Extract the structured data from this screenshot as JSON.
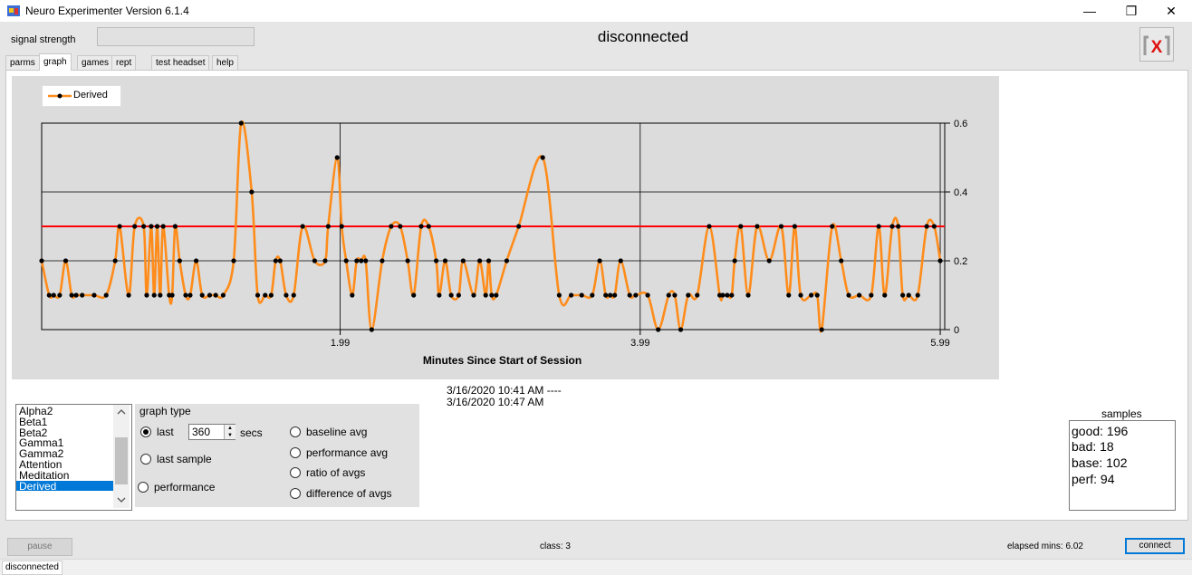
{
  "window": {
    "title": "Neuro Experimenter Version 6.1.4",
    "controls": {
      "minimize": "—",
      "restore": "❐",
      "close": "✕"
    }
  },
  "header": {
    "signal_strength_label": "signal strength",
    "connection_status": "disconnected",
    "logo_text": "X"
  },
  "tabs": [
    {
      "label": "parms",
      "active": false
    },
    {
      "label": "graph",
      "active": true
    },
    {
      "label": "games",
      "active": false
    },
    {
      "label": "rept",
      "active": false
    },
    {
      "label": "test headset",
      "active": false
    },
    {
      "label": "help",
      "active": false
    }
  ],
  "colors": {
    "series": "#ff8c1a",
    "threshold": "#ff0000",
    "selection": "#0078d7",
    "logo_x": "#e01010"
  },
  "chart_data": {
    "type": "line",
    "series": [
      {
        "name": "Derived",
        "x": [
          0.0,
          0.05,
          0.08,
          0.12,
          0.16,
          0.2,
          0.23,
          0.27,
          0.35,
          0.43,
          0.49,
          0.52,
          0.58,
          0.62,
          0.68,
          0.7,
          0.73,
          0.75,
          0.77,
          0.79,
          0.81,
          0.85,
          0.87,
          0.89,
          0.92,
          0.96,
          0.99,
          1.03,
          1.07,
          1.12,
          1.16,
          1.21,
          1.28,
          1.33,
          1.4,
          1.44,
          1.49,
          1.53,
          1.56,
          1.59,
          1.63,
          1.68,
          1.74,
          1.82,
          1.89,
          1.91,
          1.97,
          2.0,
          2.03,
          2.07,
          2.1,
          2.13,
          2.16,
          2.2,
          2.27,
          2.33,
          2.39,
          2.44,
          2.48,
          2.53,
          2.58,
          2.63,
          2.65,
          2.69,
          2.73,
          2.78,
          2.81,
          2.88,
          2.92,
          2.96,
          2.98,
          3.0,
          3.03,
          3.1,
          3.18,
          3.34,
          3.45,
          3.53,
          3.6,
          3.67,
          3.72,
          3.76,
          3.79,
          3.82,
          3.86,
          3.92,
          3.96,
          4.04,
          4.11,
          4.18,
          4.22,
          4.26,
          4.31,
          4.37,
          4.45,
          4.52,
          4.54,
          4.57,
          4.6,
          4.62,
          4.66,
          4.71,
          4.77,
          4.85,
          4.93,
          4.98,
          5.02,
          5.06,
          5.13,
          5.17,
          5.2,
          5.27,
          5.33,
          5.38,
          5.45,
          5.53,
          5.58,
          5.62,
          5.67,
          5.71,
          5.74,
          5.78,
          5.84,
          5.9,
          5.95,
          5.99
        ],
        "values": [
          0.2,
          0.1,
          0.1,
          0.1,
          0.2,
          0.1,
          0.1,
          0.1,
          0.1,
          0.1,
          0.2,
          0.3,
          0.1,
          0.3,
          0.3,
          0.1,
          0.3,
          0.1,
          0.3,
          0.1,
          0.3,
          0.1,
          0.1,
          0.3,
          0.2,
          0.1,
          0.1,
          0.2,
          0.1,
          0.1,
          0.1,
          0.1,
          0.2,
          0.6,
          0.4,
          0.1,
          0.1,
          0.1,
          0.2,
          0.2,
          0.1,
          0.1,
          0.3,
          0.2,
          0.2,
          0.3,
          0.5,
          0.3,
          0.2,
          0.1,
          0.2,
          0.2,
          0.2,
          0.0,
          0.2,
          0.3,
          0.3,
          0.2,
          0.1,
          0.3,
          0.3,
          0.2,
          0.1,
          0.2,
          0.1,
          0.1,
          0.2,
          0.1,
          0.2,
          0.1,
          0.2,
          0.1,
          0.1,
          0.2,
          0.3,
          0.5,
          0.1,
          0.1,
          0.1,
          0.1,
          0.2,
          0.1,
          0.1,
          0.1,
          0.2,
          0.1,
          0.1,
          0.1,
          0.0,
          0.1,
          0.1,
          0.0,
          0.1,
          0.1,
          0.3,
          0.1,
          0.1,
          0.1,
          0.1,
          0.2,
          0.3,
          0.1,
          0.3,
          0.2,
          0.3,
          0.1,
          0.3,
          0.1,
          0.1,
          0.1,
          0.0,
          0.3,
          0.2,
          0.1,
          0.1,
          0.1,
          0.3,
          0.1,
          0.3,
          0.3,
          0.1,
          0.1,
          0.1,
          0.3,
          0.3,
          0.2
        ]
      }
    ],
    "threshold": 0.3,
    "xlabel": "Minutes Since Start of Session",
    "x_tick_labels": [
      "1.99",
      "3.99",
      "5.99"
    ],
    "x_ticks": [
      1.99,
      3.99,
      5.99
    ],
    "xlim": [
      0,
      6.02
    ],
    "y_tick_labels": [
      "0",
      "0.2",
      "0.4",
      "0.6"
    ],
    "y_ticks": [
      0,
      0.2,
      0.4,
      0.6
    ],
    "ylim": [
      0,
      0.6
    ],
    "grid": true,
    "legend": "top-left"
  },
  "dates": {
    "start": "3/16/2020 10:41 AM  ----",
    "end": "3/16/2020 10:47 AM"
  },
  "signal_list": {
    "items": [
      "Alpha2",
      "Beta1",
      "Beta2",
      "Gamma1",
      "Gamma2",
      "Attention",
      "Meditation",
      "Derived"
    ],
    "selected": "Derived"
  },
  "graph_type": {
    "title": "graph type",
    "last_label": "last",
    "secs_value": "360",
    "secs_label": "secs",
    "last_sample_label": "last sample",
    "performance_label": "performance",
    "baseline_avg_label": "baseline avg",
    "performance_avg_label": "performance avg",
    "ratio_label": "ratio of avgs",
    "difference_label": "difference of avgs",
    "selected": "last"
  },
  "samples": {
    "title": "samples",
    "good": "good: 196",
    "bad": "bad:  18",
    "base": "base: 102",
    "perf": "perf: 94"
  },
  "footer": {
    "pause_label": "pause",
    "class_label": "class:  3",
    "elapsed_label": "elapsed mins: 6.02",
    "connect_label": "connect",
    "status": "disconnected"
  }
}
